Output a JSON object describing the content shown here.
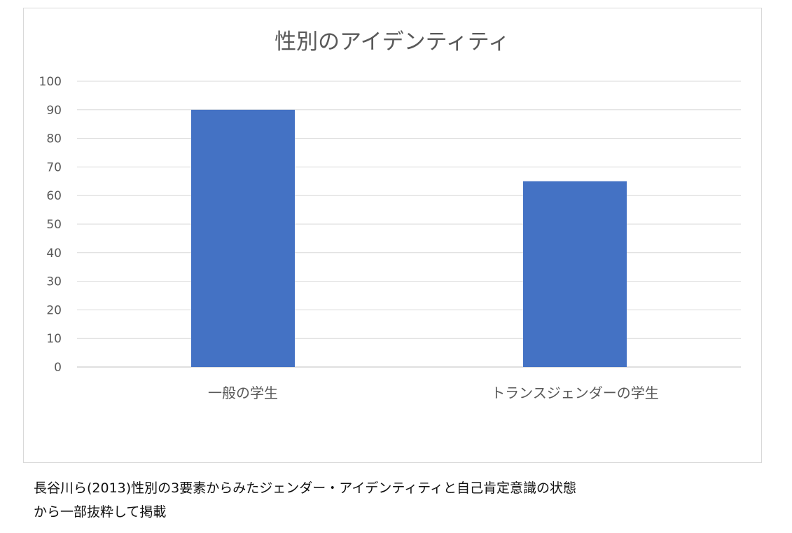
{
  "chart_data": {
    "type": "bar",
    "title": "性別のアイデンティティ",
    "categories": [
      "一般の学生",
      "トランスジェンダーの学生"
    ],
    "values": [
      90,
      65
    ],
    "ylim": [
      0,
      100
    ],
    "yticks": [
      0,
      10,
      20,
      30,
      40,
      50,
      60,
      70,
      80,
      90,
      100
    ],
    "xlabel": "",
    "ylabel": "",
    "grid": true,
    "legend": "none",
    "bar_color": "#4472c4"
  },
  "caption": {
    "line1": "長谷川ら(2013)性別の3要素からみたジェンダー・アイデンティティと自己肯定意識の状態",
    "line2": "から一部抜粋して掲載"
  }
}
